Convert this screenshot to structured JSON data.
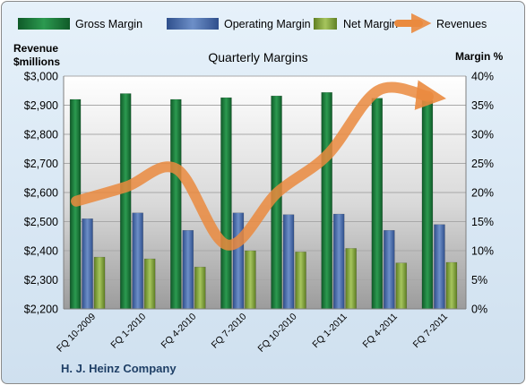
{
  "chart_data": {
    "type": "bar",
    "title": "Quarterly Margins",
    "company": "H. J. Heinz Company",
    "ylabel_left_line1": "Revenue",
    "ylabel_left_line2": "$millions",
    "ylabel_right": "Margin %",
    "categories": [
      "FQ 10-2009",
      "FQ 1-2010",
      "FQ 4-2010",
      "FQ 7-2010",
      "FQ 10-2010",
      "FQ 1-2011",
      "FQ 4-2011",
      "FQ 7-2011"
    ],
    "ylim_left": [
      2200,
      3000
    ],
    "ylim_right": [
      0,
      40
    ],
    "yticks_left": [
      "$2,200",
      "$2,300",
      "$2,400",
      "$2,500",
      "$2,600",
      "$2,700",
      "$2,800",
      "$2,900",
      "$3,000"
    ],
    "yticks_right": [
      "0%",
      "5%",
      "10%",
      "15%",
      "20%",
      "25%",
      "30%",
      "35%",
      "40%"
    ],
    "series": [
      {
        "name": "Gross Margin",
        "axis": "right",
        "kind": "bar",
        "color": "#1e7a3c",
        "values": [
          36.0,
          37.0,
          36.0,
          36.3,
          36.6,
          37.2,
          36.2,
          35.8
        ]
      },
      {
        "name": "Operating Margin",
        "axis": "right",
        "kind": "bar",
        "color": "#4a6fae",
        "values": [
          15.5,
          16.5,
          13.5,
          16.5,
          16.2,
          16.3,
          13.5,
          14.5
        ]
      },
      {
        "name": "Net Margin",
        "axis": "right",
        "kind": "bar",
        "color": "#8aad3f",
        "values": [
          8.9,
          8.6,
          7.2,
          10.0,
          9.8,
          10.4,
          7.9,
          8.0
        ]
      },
      {
        "name": "Revenues",
        "axis": "left",
        "kind": "line",
        "color": "#ea8a3e",
        "values": [
          2570,
          2620,
          2680,
          2420,
          2600,
          2730,
          2950,
          2930
        ]
      }
    ],
    "legend_position": "top",
    "grid": true
  }
}
